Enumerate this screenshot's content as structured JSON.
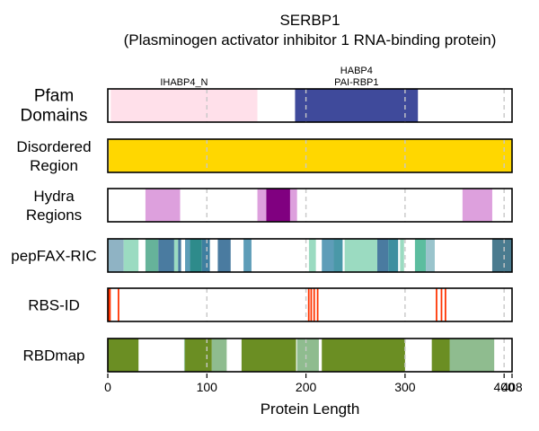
{
  "chart_data": {
    "type": "protein-track",
    "title": "SERBP1",
    "subtitle": "(Plasminogen activator inhibitor 1 RNA-binding protein)",
    "xlabel": "Protein Length",
    "xlim": [
      0,
      408
    ],
    "xticks": [
      0,
      100,
      200,
      300,
      400,
      408
    ],
    "xtick_labels": [
      "0",
      "100",
      "200",
      "300",
      "400",
      "408"
    ],
    "gridlines": [
      100,
      200,
      300,
      400
    ],
    "tracks": [
      {
        "key": "pfam",
        "label_lines": [
          "Pfam",
          "Domains"
        ],
        "segments": [
          {
            "start": 3,
            "end": 151,
            "color": "#ffe0ea",
            "label_lines": [
              "IHABP4_N"
            ]
          },
          {
            "start": 189,
            "end": 313,
            "color": "#3f4a9b",
            "label_lines": [
              "HABP4",
              "PAI-RBP1"
            ]
          }
        ]
      },
      {
        "key": "disordered",
        "label_lines": [
          "Disordered",
          "Region"
        ],
        "segments": [
          {
            "start": 1,
            "end": 408,
            "color": "#ffd700"
          }
        ]
      },
      {
        "key": "hydra",
        "label_lines": [
          "Hydra",
          "Regions"
        ],
        "segments": [
          {
            "start": 38,
            "end": 73,
            "color": "#dda0dd"
          },
          {
            "start": 151,
            "end": 160,
            "color": "#dda0dd"
          },
          {
            "start": 160,
            "end": 184,
            "color": "#800080"
          },
          {
            "start": 184,
            "end": 191,
            "color": "#dda0dd"
          },
          {
            "start": 358,
            "end": 388,
            "color": "#dda0dd"
          }
        ]
      },
      {
        "key": "pepfax",
        "label_lines": [
          "pepFAX-RIC"
        ],
        "segments": [
          {
            "start": 0,
            "end": 16,
            "color": "#8fb3c4"
          },
          {
            "start": 16,
            "end": 31,
            "color": "#9bdbc1"
          },
          {
            "start": 38,
            "end": 51,
            "color": "#66b39a"
          },
          {
            "start": 51,
            "end": 67,
            "color": "#4a7ba0"
          },
          {
            "start": 67,
            "end": 71,
            "color": "#9bdbc1"
          },
          {
            "start": 71,
            "end": 74,
            "color": "#4a7ba0"
          },
          {
            "start": 78,
            "end": 83,
            "color": "#5e9db8"
          },
          {
            "start": 83,
            "end": 95,
            "color": "#2e8b8b"
          },
          {
            "start": 95,
            "end": 103,
            "color": "#3f7fa0"
          },
          {
            "start": 111,
            "end": 124,
            "color": "#4a7ba0"
          },
          {
            "start": 137,
            "end": 145,
            "color": "#5e9db8"
          },
          {
            "start": 203,
            "end": 210,
            "color": "#9bdbc1"
          },
          {
            "start": 216,
            "end": 228,
            "color": "#5e9db8"
          },
          {
            "start": 228,
            "end": 237,
            "color": "#4a98a8"
          },
          {
            "start": 239,
            "end": 272,
            "color": "#9bdbc1"
          },
          {
            "start": 272,
            "end": 283,
            "color": "#4a7ba0"
          },
          {
            "start": 283,
            "end": 293,
            "color": "#3f8fa0"
          },
          {
            "start": 295,
            "end": 299,
            "color": "#9bdbc1"
          },
          {
            "start": 310,
            "end": 321,
            "color": "#5cbd9f"
          },
          {
            "start": 321,
            "end": 330,
            "color": "#9ac4cc"
          },
          {
            "start": 388,
            "end": 408,
            "color": "#4a7b8f"
          }
        ]
      },
      {
        "key": "rbsid",
        "label_lines": [
          "RBS-ID"
        ],
        "segments": [
          {
            "start": 0,
            "end": 3,
            "color": "#ff3300"
          },
          {
            "start": 10,
            "end": 11.6,
            "color": "#ff3300"
          },
          {
            "start": 202,
            "end": 203.6,
            "color": "#ff3300"
          },
          {
            "start": 204.5,
            "end": 206.1,
            "color": "#ff3300"
          },
          {
            "start": 207.5,
            "end": 209.1,
            "color": "#ff3300"
          },
          {
            "start": 211,
            "end": 212.6,
            "color": "#ff3300"
          },
          {
            "start": 331,
            "end": 332.6,
            "color": "#ff3300"
          },
          {
            "start": 336,
            "end": 337.6,
            "color": "#ff3300"
          },
          {
            "start": 340,
            "end": 341.6,
            "color": "#ff3300"
          }
        ]
      },
      {
        "key": "rbdmap",
        "label_lines": [
          "RBDmap"
        ],
        "segments": [
          {
            "start": 0,
            "end": 31,
            "color": "#6b8e23"
          },
          {
            "start": 77,
            "end": 78,
            "color": "#8fbc8f"
          },
          {
            "start": 78,
            "end": 105,
            "color": "#6b8e23"
          },
          {
            "start": 105,
            "end": 120,
            "color": "#8fbc8f"
          },
          {
            "start": 135,
            "end": 190,
            "color": "#6b8e23"
          },
          {
            "start": 191,
            "end": 213,
            "color": "#8fbc8f"
          },
          {
            "start": 216,
            "end": 300,
            "color": "#6b8e23"
          },
          {
            "start": 327,
            "end": 345,
            "color": "#6b8e23"
          },
          {
            "start": 345,
            "end": 390,
            "color": "#8fbc8f"
          }
        ]
      }
    ]
  }
}
